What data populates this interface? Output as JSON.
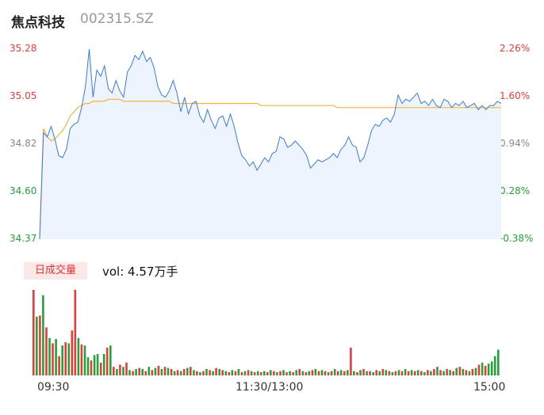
{
  "stock": {
    "name": "焦点科技",
    "code": "002315.SZ"
  },
  "colors": {
    "price": "#3b7be0",
    "avg": "#f5b23a",
    "up": "#e83a3a",
    "down": "#22a33a",
    "neutral": "#888888",
    "fill": "#eef4fd",
    "tag_bg": "#fde8e8"
  },
  "volume_panel": {
    "tag": "日成交量",
    "label": "vol: 4.57万手"
  },
  "chart_data": {
    "type": "line",
    "title": "",
    "y_left_ticks": [
      "35.28",
      "35.05",
      "34.82",
      "34.60",
      "34.37"
    ],
    "y_right_ticks": [
      "2.26%",
      "1.60%",
      "0.94%",
      "0.28%",
      "-0.38%"
    ],
    "x_ticks": [
      "09:30",
      "11:30/13:00",
      "15:00"
    ],
    "ylim": [
      34.37,
      35.28
    ],
    "grid": false,
    "series": [
      {
        "values": [
          34.37,
          34.88,
          34.86,
          34.91,
          34.85,
          34.77,
          34.76,
          34.8,
          34.9,
          34.92,
          34.93,
          35.0,
          35.1,
          35.28,
          35.05,
          35.18,
          35.15,
          35.2,
          35.09,
          35.07,
          35.13,
          35.08,
          35.05,
          35.17,
          35.2,
          35.25,
          35.23,
          35.27,
          35.22,
          35.24,
          35.19,
          35.1,
          35.06,
          35.05,
          35.08,
          35.13,
          35.07,
          34.98,
          35.05,
          34.97,
          35.02,
          35.03,
          34.96,
          34.93,
          34.99,
          34.94,
          34.9,
          34.95,
          34.96,
          34.91,
          34.97,
          34.91,
          34.83,
          34.77,
          34.75,
          34.72,
          34.74,
          34.7,
          34.73,
          34.76,
          34.74,
          34.78,
          34.79,
          34.86,
          34.85,
          34.81,
          34.82,
          34.84,
          34.82,
          34.8,
          34.77,
          34.71,
          34.73,
          34.75,
          34.74,
          34.75,
          34.76,
          34.78,
          34.76,
          34.8,
          34.82,
          34.86,
          34.82,
          34.81,
          34.74,
          34.76,
          34.82,
          34.89,
          34.92,
          34.91,
          34.94,
          34.95,
          34.93,
          34.97,
          35.06,
          35.02,
          35.04,
          35.03,
          35.05,
          35.07,
          35.02,
          35.03,
          35.01,
          35.04,
          35.01,
          35.0,
          35.04,
          35.03,
          35.0,
          35.02,
          35.01,
          35.03,
          35.0,
          35.01,
          35.02,
          34.99,
          35.01,
          34.99,
          35.01,
          35.01,
          35.03,
          35.02
        ],
        "color": "#3b7be0"
      },
      {
        "values": [
          34.37,
          34.9,
          34.86,
          34.84,
          34.85,
          34.87,
          34.89,
          34.92,
          34.96,
          34.98,
          35.0,
          35.01,
          35.02,
          35.02,
          35.03,
          35.03,
          35.03,
          35.03,
          35.04,
          35.04,
          35.04,
          35.04,
          35.03,
          35.03,
          35.03,
          35.03,
          35.03,
          35.03,
          35.03,
          35.03,
          35.03,
          35.03,
          35.03,
          35.03,
          35.03,
          35.02,
          35.02,
          35.02,
          35.02,
          35.02,
          35.02,
          35.02,
          35.02,
          35.02,
          35.02,
          35.02,
          35.02,
          35.02,
          35.02,
          35.02,
          35.02,
          35.02,
          35.02,
          35.02,
          35.02,
          35.02,
          35.02,
          35.02,
          35.01,
          35.01,
          35.01,
          35.01,
          35.01,
          35.01,
          35.01,
          35.01,
          35.01,
          35.01,
          35.01,
          35.01,
          35.01,
          35.01,
          35.01,
          35.01,
          35.01,
          35.01,
          35.01,
          35.01,
          35.0,
          35.0,
          35.0,
          35.0,
          35.0,
          35.0,
          35.0,
          35.0,
          35.0,
          35.0,
          35.0,
          35.0,
          35.0,
          35.0,
          35.0,
          35.0,
          35.0,
          35.0,
          35.0,
          35.0,
          35.0,
          35.0,
          35.0,
          35.0,
          35.0,
          35.0,
          35.0,
          35.0,
          35.0,
          35.0,
          35.0,
          35.0,
          35.0,
          35.0,
          35.0,
          35.0,
          35.0,
          35.0,
          35.0,
          35.0,
          35.0,
          35.0,
          35.0,
          35.0
        ],
        "color": "#f5b23a"
      }
    ],
    "volume": {
      "values": [
        80,
        55,
        56,
        75,
        45,
        35,
        30,
        34,
        18,
        28,
        31,
        30,
        42,
        80,
        35,
        29,
        28,
        17,
        14,
        19,
        20,
        12,
        20,
        26,
        28,
        8,
        6,
        10,
        8,
        12,
        5,
        4,
        6,
        7,
        6,
        4,
        8,
        5,
        7,
        9,
        6,
        8,
        7,
        6,
        4,
        5,
        4,
        6,
        7,
        8,
        5,
        4,
        3,
        4,
        6,
        5,
        4,
        7,
        6,
        5,
        4,
        3,
        5,
        4,
        6,
        3,
        4,
        5,
        4,
        3,
        4,
        3,
        4,
        3,
        5,
        4,
        3,
        4,
        5,
        3,
        4,
        3,
        5,
        6,
        4,
        3,
        4,
        5,
        6,
        4,
        5,
        4,
        3,
        4,
        6,
        4,
        5,
        4,
        5,
        26,
        4,
        3,
        5,
        6,
        4,
        4,
        3,
        5,
        4,
        6,
        5,
        4,
        3,
        4,
        5,
        4,
        6,
        4,
        5,
        4,
        5,
        4,
        3,
        5,
        4,
        6,
        8,
        5,
        4,
        6,
        5,
        4,
        7,
        8,
        6,
        5,
        4,
        6,
        7,
        10,
        12,
        9,
        11,
        13,
        18,
        24
      ],
      "colors": [
        "up",
        "down",
        "up",
        "down",
        "up",
        "down",
        "up",
        "down",
        "up",
        "down",
        "up",
        "down",
        "up",
        "up",
        "down",
        "up",
        "down",
        "down",
        "up",
        "down",
        "down",
        "up",
        "down",
        "up",
        "down",
        "up",
        "down",
        "up",
        "down",
        "up",
        "down",
        "up",
        "down",
        "up",
        "down",
        "up",
        "down",
        "up",
        "down",
        "up",
        "down",
        "up",
        "down",
        "up",
        "down",
        "up",
        "down",
        "up",
        "down",
        "up",
        "down",
        "up",
        "down",
        "up",
        "down",
        "up",
        "down",
        "up",
        "down",
        "up",
        "down",
        "up",
        "down",
        "up",
        "down",
        "up",
        "down",
        "up",
        "down",
        "up",
        "down",
        "up",
        "down",
        "up",
        "down",
        "up",
        "down",
        "up",
        "down",
        "up",
        "down",
        "up",
        "down",
        "up",
        "down",
        "up",
        "down",
        "up",
        "down",
        "up",
        "down",
        "up",
        "down",
        "up",
        "down",
        "up",
        "down",
        "up",
        "down",
        "up",
        "down",
        "up",
        "down",
        "up",
        "down",
        "up",
        "down",
        "up",
        "down",
        "up",
        "down",
        "up",
        "down",
        "up",
        "down",
        "up",
        "down",
        "up",
        "down",
        "up",
        "down",
        "up",
        "down",
        "up",
        "down",
        "up",
        "down",
        "up",
        "down",
        "up",
        "down",
        "up",
        "down",
        "up",
        "down",
        "up",
        "down",
        "up",
        "down",
        "up",
        "down",
        "up"
      ]
    }
  }
}
